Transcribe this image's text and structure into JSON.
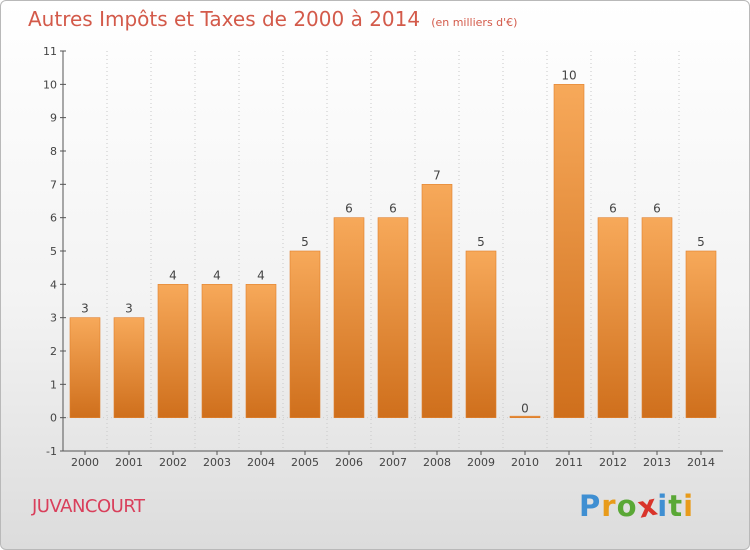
{
  "chart_data": {
    "type": "bar",
    "title": "Autres Impôts et Taxes de 2000 à 2014",
    "subtitle": "(en milliers d'€)",
    "categories": [
      "2000",
      "2001",
      "2002",
      "2003",
      "2004",
      "2005",
      "2006",
      "2007",
      "2008",
      "2009",
      "2010",
      "2011",
      "2012",
      "2013",
      "2014"
    ],
    "values": [
      3,
      3,
      4,
      4,
      4,
      5,
      6,
      6,
      7,
      5,
      0,
      10,
      6,
      6,
      5
    ],
    "data_labels": [
      "3",
      "3",
      "4",
      "4",
      "4",
      "5",
      "6",
      "6",
      "7",
      "5",
      "0",
      "10",
      "6",
      "6",
      "5"
    ],
    "y_ticks": [
      "-1",
      "0",
      "1",
      "2",
      "3",
      "4",
      "5",
      "6",
      "7",
      "8",
      "9",
      "10",
      "11"
    ],
    "ylim": [
      -1,
      11
    ],
    "xlabel": "",
    "ylabel": "",
    "grid": "vertical dotted",
    "legend": "none",
    "colors": {
      "bar_top": "#f7a95a",
      "bar_bottom": "#cf6f1c",
      "bar_stroke": "#e07f2b",
      "title": "#d35a4a"
    }
  },
  "footer": {
    "place_name": "JUVANCOURT",
    "brand_letters": [
      "P",
      "r",
      "o",
      "x",
      "i",
      "t",
      "i"
    ],
    "brand_colors": [
      "#3f8fd2",
      "#e89b1b",
      "#5aa836",
      "#d9342b",
      "#3f8fd2",
      "#5aa836",
      "#e89b1b"
    ]
  }
}
